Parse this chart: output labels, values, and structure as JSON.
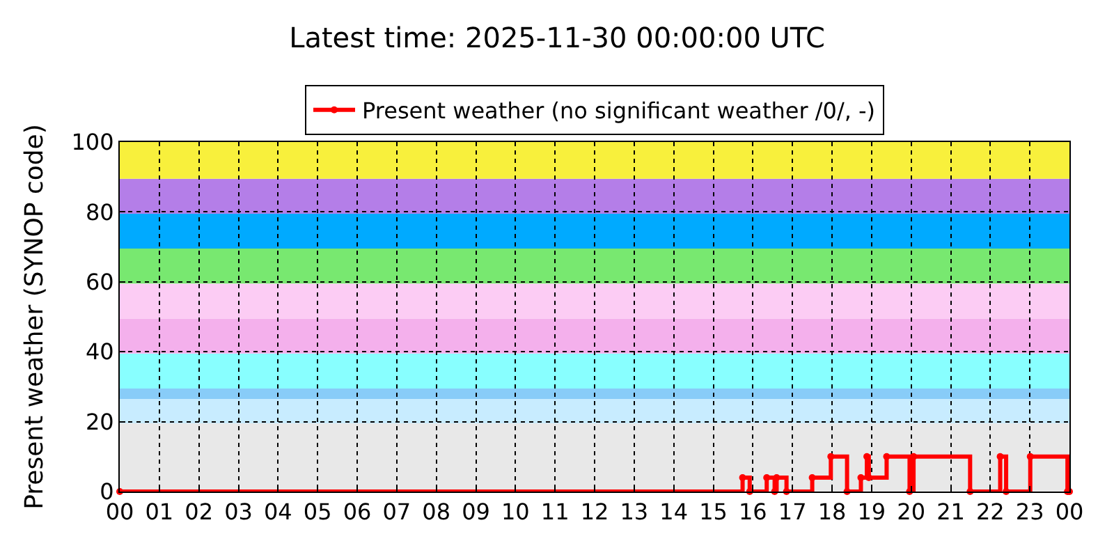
{
  "chart_data": {
    "type": "step",
    "title": "Latest time: 2025-11-30 00:00:00 UTC",
    "ylabel": "Present weather (SYNOP code)",
    "x": [
      0,
      15.74,
      15.92,
      16.35,
      16.55,
      16.6,
      16.85,
      17.5,
      17.97,
      18.38,
      18.73,
      18.88,
      18.93,
      19.38,
      19.96,
      20.06,
      21.49,
      22.25,
      22.4,
      23.01,
      23.95,
      24
    ],
    "series": [
      {
        "name": "Present weather (no significant weather /0/, -)",
        "color": "#ff0000",
        "values": [
          0,
          4,
          0,
          4,
          0,
          4,
          0,
          4,
          10,
          0,
          4,
          10,
          4,
          10,
          0,
          10,
          0,
          10,
          0,
          10,
          0,
          0
        ]
      }
    ],
    "xlim": [
      0,
      24
    ],
    "xticks": [
      {
        "value": 0,
        "label": "00"
      },
      {
        "value": 1,
        "label": "01"
      },
      {
        "value": 2,
        "label": "02"
      },
      {
        "value": 3,
        "label": "03"
      },
      {
        "value": 4,
        "label": "04"
      },
      {
        "value": 5,
        "label": "05"
      },
      {
        "value": 6,
        "label": "06"
      },
      {
        "value": 7,
        "label": "07"
      },
      {
        "value": 8,
        "label": "08"
      },
      {
        "value": 9,
        "label": "09"
      },
      {
        "value": 10,
        "label": "10"
      },
      {
        "value": 11,
        "label": "11"
      },
      {
        "value": 12,
        "label": "12"
      },
      {
        "value": 13,
        "label": "13"
      },
      {
        "value": 14,
        "label": "14"
      },
      {
        "value": 15,
        "label": "15"
      },
      {
        "value": 16,
        "label": "16"
      },
      {
        "value": 17,
        "label": "17"
      },
      {
        "value": 18,
        "label": "18"
      },
      {
        "value": 19,
        "label": "19"
      },
      {
        "value": 20,
        "label": "20"
      },
      {
        "value": 21,
        "label": "21"
      },
      {
        "value": 22,
        "label": "22"
      },
      {
        "value": 23,
        "label": "23"
      },
      {
        "value": 24,
        "label": "00"
      }
    ],
    "ylim": [
      0,
      100
    ],
    "yticks": [
      0,
      20,
      40,
      60,
      80,
      100
    ],
    "bands": [
      {
        "axis": "y",
        "from": 0,
        "to": 19.5,
        "color": "#e8e8e8"
      },
      {
        "axis": "y",
        "from": 19.5,
        "to": 26.5,
        "color": "#c8ecff"
      },
      {
        "axis": "y",
        "from": 26.5,
        "to": 29.5,
        "color": "#88ccf8"
      },
      {
        "axis": "y",
        "from": 29.5,
        "to": 39.5,
        "color": "#88ffff"
      },
      {
        "axis": "y",
        "from": 39.5,
        "to": 49.5,
        "color": "#f4b0ec"
      },
      {
        "axis": "y",
        "from": 49.5,
        "to": 59.5,
        "color": "#fcccf4"
      },
      {
        "axis": "y",
        "from": 59.5,
        "to": 69.5,
        "color": "#78e870"
      },
      {
        "axis": "y",
        "from": 69.5,
        "to": 79.5,
        "color": "#00aaff"
      },
      {
        "axis": "y",
        "from": 79.5,
        "to": 89.5,
        "color": "#b47ee8"
      },
      {
        "axis": "y",
        "from": 89.5,
        "to": 100,
        "color": "#f8f03c"
      }
    ],
    "grid": true,
    "legend": "top",
    "marker": "circle",
    "line_style": "solid"
  }
}
